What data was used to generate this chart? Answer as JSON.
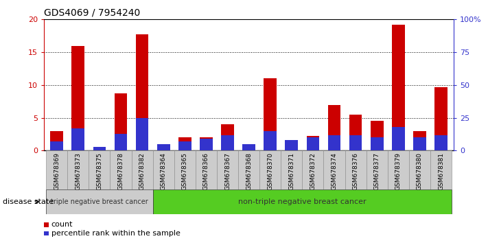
{
  "title": "GDS4069 / 7954240",
  "samples": [
    "GSM678369",
    "GSM678373",
    "GSM678375",
    "GSM678378",
    "GSM678382",
    "GSM678364",
    "GSM678365",
    "GSM678366",
    "GSM678367",
    "GSM678368",
    "GSM678370",
    "GSM678371",
    "GSM678372",
    "GSM678374",
    "GSM678376",
    "GSM678377",
    "GSM678379",
    "GSM678380",
    "GSM678381"
  ],
  "count_values": [
    3.0,
    16.0,
    0.4,
    8.7,
    17.7,
    0.1,
    2.0,
    2.0,
    4.0,
    0.2,
    11.0,
    1.6,
    2.2,
    7.0,
    5.5,
    4.5,
    19.2,
    3.0,
    9.7
  ],
  "percentile_values": [
    7,
    17,
    3,
    13,
    25,
    5,
    7,
    9,
    12,
    5,
    15,
    8,
    10,
    12,
    12,
    10,
    18,
    10,
    12
  ],
  "group1_label": "triple negative breast cancer",
  "group2_label": "non-triple negative breast cancer",
  "group1_count": 5,
  "group2_count": 14,
  "disease_state_label": "disease state",
  "legend_count": "count",
  "legend_percentile": "percentile rank within the sample",
  "ylim_left": [
    0,
    20
  ],
  "ylim_right": [
    0,
    100
  ],
  "yticks_left": [
    0,
    5,
    10,
    15,
    20
  ],
  "yticks_right": [
    0,
    25,
    50,
    75,
    100
  ],
  "ytick_labels_right": [
    "0",
    "25",
    "50",
    "75",
    "100%"
  ],
  "bar_color_count": "#cc0000",
  "bar_color_percentile": "#3333cc",
  "bar_width": 0.6,
  "group1_bg": "#cccccc",
  "group2_bg": "#55cc22",
  "group1_bg_xtick": "#cccccc",
  "title_color": "#000000",
  "left_axis_color": "#cc0000",
  "right_axis_color": "#3333cc",
  "background_color": "#ffffff",
  "grid_color": "#000000"
}
